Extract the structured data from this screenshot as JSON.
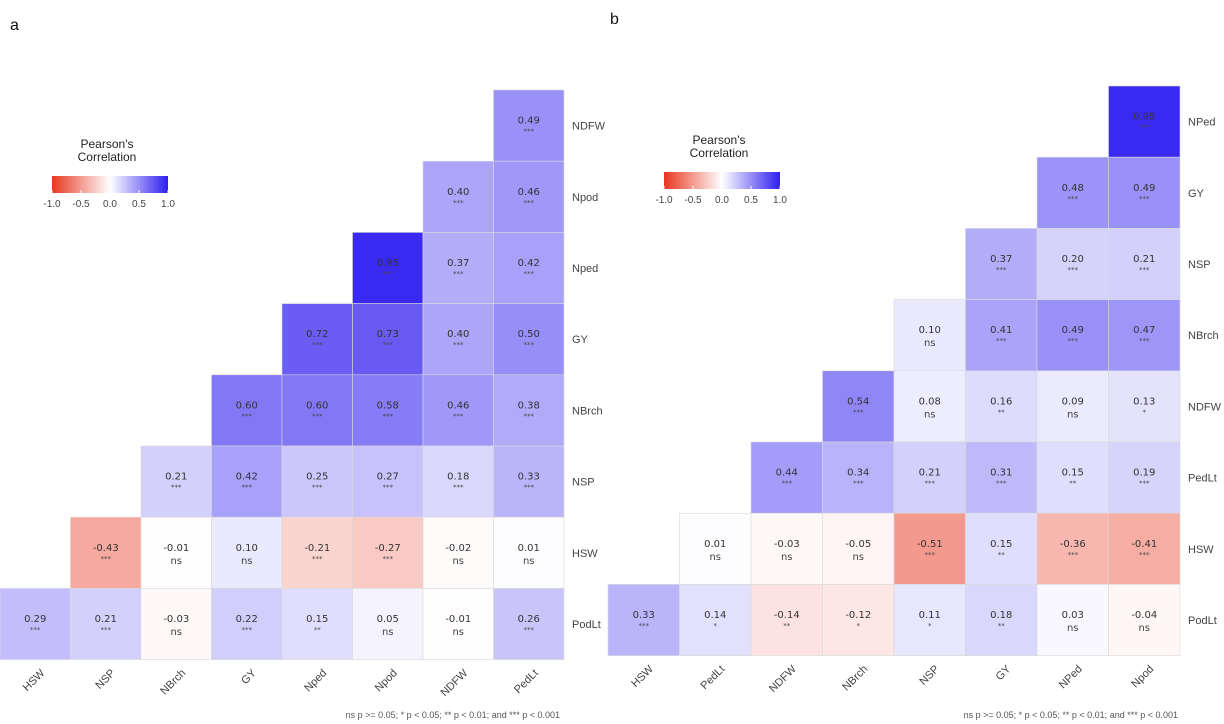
{
  "colors": {
    "negative": "#e8371f",
    "zero": "#ffffff",
    "positive": "#2f1ef0"
  },
  "chart_data": [
    {
      "type": "heatmap",
      "panel_label": "a",
      "legend_title": [
        "Pearson's",
        "Correlation"
      ],
      "legend_ticks": [
        "-1.0",
        "-0.5",
        "0.0",
        "0.5",
        "1.0"
      ],
      "legend_range": [
        -1,
        1
      ],
      "legend_placement": "top-left",
      "x_labels": [
        "HSW",
        "NSP",
        "NBrch",
        "GY",
        "Nped",
        "Npod",
        "NDFW",
        "PedLt"
      ],
      "y_labels": [
        "NDFW",
        "Npod",
        "Nped",
        "GY",
        "NBrch",
        "NSP",
        "HSW",
        "PodLt"
      ],
      "cells": [
        {
          "row": 0,
          "col": 7,
          "value": 0.49,
          "sig": "***"
        },
        {
          "row": 1,
          "col": 6,
          "value": 0.4,
          "sig": "***"
        },
        {
          "row": 1,
          "col": 7,
          "value": 0.46,
          "sig": "***"
        },
        {
          "row": 2,
          "col": 5,
          "value": 0.95,
          "sig": "***"
        },
        {
          "row": 2,
          "col": 6,
          "value": 0.37,
          "sig": "***"
        },
        {
          "row": 2,
          "col": 7,
          "value": 0.42,
          "sig": "***"
        },
        {
          "row": 3,
          "col": 4,
          "value": 0.72,
          "sig": "***"
        },
        {
          "row": 3,
          "col": 5,
          "value": 0.73,
          "sig": "***"
        },
        {
          "row": 3,
          "col": 6,
          "value": 0.4,
          "sig": "***"
        },
        {
          "row": 3,
          "col": 7,
          "value": 0.5,
          "sig": "***"
        },
        {
          "row": 4,
          "col": 3,
          "value": 0.6,
          "sig": "***"
        },
        {
          "row": 4,
          "col": 4,
          "value": 0.6,
          "sig": "***"
        },
        {
          "row": 4,
          "col": 5,
          "value": 0.58,
          "sig": "***"
        },
        {
          "row": 4,
          "col": 6,
          "value": 0.46,
          "sig": "***"
        },
        {
          "row": 4,
          "col": 7,
          "value": 0.38,
          "sig": "***"
        },
        {
          "row": 5,
          "col": 2,
          "value": 0.21,
          "sig": "***"
        },
        {
          "row": 5,
          "col": 3,
          "value": 0.42,
          "sig": "***"
        },
        {
          "row": 5,
          "col": 4,
          "value": 0.25,
          "sig": "***"
        },
        {
          "row": 5,
          "col": 5,
          "value": 0.27,
          "sig": "***"
        },
        {
          "row": 5,
          "col": 6,
          "value": 0.18,
          "sig": "***"
        },
        {
          "row": 5,
          "col": 7,
          "value": 0.33,
          "sig": "***"
        },
        {
          "row": 6,
          "col": 1,
          "value": -0.43,
          "sig": "***"
        },
        {
          "row": 6,
          "col": 2,
          "value": -0.01,
          "sig": "ns"
        },
        {
          "row": 6,
          "col": 3,
          "value": 0.1,
          "sig": "ns"
        },
        {
          "row": 6,
          "col": 4,
          "value": -0.21,
          "sig": "***"
        },
        {
          "row": 6,
          "col": 5,
          "value": -0.27,
          "sig": "***"
        },
        {
          "row": 6,
          "col": 6,
          "value": -0.02,
          "sig": "ns"
        },
        {
          "row": 6,
          "col": 7,
          "value": 0.01,
          "sig": "ns"
        },
        {
          "row": 7,
          "col": 0,
          "value": 0.29,
          "sig": "***"
        },
        {
          "row": 7,
          "col": 1,
          "value": 0.21,
          "sig": "***"
        },
        {
          "row": 7,
          "col": 2,
          "value": -0.03,
          "sig": "ns"
        },
        {
          "row": 7,
          "col": 3,
          "value": 0.22,
          "sig": "***"
        },
        {
          "row": 7,
          "col": 4,
          "value": 0.15,
          "sig": "**"
        },
        {
          "row": 7,
          "col": 5,
          "value": 0.05,
          "sig": "ns"
        },
        {
          "row": 7,
          "col": 6,
          "value": -0.01,
          "sig": "ns"
        },
        {
          "row": 7,
          "col": 7,
          "value": 0.26,
          "sig": "***"
        }
      ],
      "note": "ns p >= 0.05; * p < 0.05; ** p < 0.01; and *** p < 0.001"
    },
    {
      "type": "heatmap",
      "panel_label": "b",
      "legend_title": [
        "Pearson's",
        "Correlation"
      ],
      "legend_ticks": [
        "-1.0",
        "-0.5",
        "0.0",
        "0.5",
        "1.0"
      ],
      "legend_range": [
        -1,
        1
      ],
      "legend_placement": "top-left",
      "x_labels": [
        "HSW",
        "PedLt",
        "NDFW",
        "NBrch",
        "NSP",
        "GY",
        "NPed",
        "Npod"
      ],
      "y_labels": [
        "NPed",
        "GY",
        "NSP",
        "NBrch",
        "NDFW",
        "PedLt",
        "HSW",
        "PodLt"
      ],
      "cells": [
        {
          "row": 0,
          "col": 7,
          "value": 0.95,
          "sig": "***"
        },
        {
          "row": 1,
          "col": 6,
          "value": 0.48,
          "sig": "***"
        },
        {
          "row": 1,
          "col": 7,
          "value": 0.49,
          "sig": "***"
        },
        {
          "row": 2,
          "col": 5,
          "value": 0.37,
          "sig": "***"
        },
        {
          "row": 2,
          "col": 6,
          "value": 0.2,
          "sig": "***"
        },
        {
          "row": 2,
          "col": 7,
          "value": 0.21,
          "sig": "***"
        },
        {
          "row": 3,
          "col": 4,
          "value": 0.1,
          "sig": "ns"
        },
        {
          "row": 3,
          "col": 5,
          "value": 0.41,
          "sig": "***"
        },
        {
          "row": 3,
          "col": 6,
          "value": 0.49,
          "sig": "***"
        },
        {
          "row": 3,
          "col": 7,
          "value": 0.47,
          "sig": "***"
        },
        {
          "row": 4,
          "col": 3,
          "value": 0.54,
          "sig": "***"
        },
        {
          "row": 4,
          "col": 4,
          "value": 0.08,
          "sig": "ns"
        },
        {
          "row": 4,
          "col": 5,
          "value": 0.16,
          "sig": "**"
        },
        {
          "row": 4,
          "col": 6,
          "value": 0.09,
          "sig": "ns"
        },
        {
          "row": 4,
          "col": 7,
          "value": 0.13,
          "sig": "*"
        },
        {
          "row": 5,
          "col": 2,
          "value": 0.44,
          "sig": "***"
        },
        {
          "row": 5,
          "col": 3,
          "value": 0.34,
          "sig": "***"
        },
        {
          "row": 5,
          "col": 4,
          "value": 0.21,
          "sig": "***"
        },
        {
          "row": 5,
          "col": 5,
          "value": 0.31,
          "sig": "***"
        },
        {
          "row": 5,
          "col": 6,
          "value": 0.15,
          "sig": "**"
        },
        {
          "row": 5,
          "col": 7,
          "value": 0.19,
          "sig": "***"
        },
        {
          "row": 6,
          "col": 1,
          "value": 0.01,
          "sig": "ns"
        },
        {
          "row": 6,
          "col": 2,
          "value": -0.03,
          "sig": "ns"
        },
        {
          "row": 6,
          "col": 3,
          "value": -0.05,
          "sig": "ns"
        },
        {
          "row": 6,
          "col": 4,
          "value": -0.51,
          "sig": "***"
        },
        {
          "row": 6,
          "col": 5,
          "value": 0.15,
          "sig": "**"
        },
        {
          "row": 6,
          "col": 6,
          "value": -0.36,
          "sig": "***"
        },
        {
          "row": 6,
          "col": 7,
          "value": -0.41,
          "sig": "***"
        },
        {
          "row": 7,
          "col": 0,
          "value": 0.33,
          "sig": "***"
        },
        {
          "row": 7,
          "col": 1,
          "value": 0.14,
          "sig": "*"
        },
        {
          "row": 7,
          "col": 2,
          "value": -0.14,
          "sig": "**"
        },
        {
          "row": 7,
          "col": 3,
          "value": -0.12,
          "sig": "*"
        },
        {
          "row": 7,
          "col": 4,
          "value": 0.11,
          "sig": "*"
        },
        {
          "row": 7,
          "col": 5,
          "value": 0.18,
          "sig": "**"
        },
        {
          "row": 7,
          "col": 6,
          "value": 0.03,
          "sig": "ns"
        },
        {
          "row": 7,
          "col": 7,
          "value": -0.04,
          "sig": "ns"
        }
      ],
      "note": "ns p >= 0.05; * p < 0.05; ** p < 0.01; and *** p < 0.001"
    }
  ]
}
